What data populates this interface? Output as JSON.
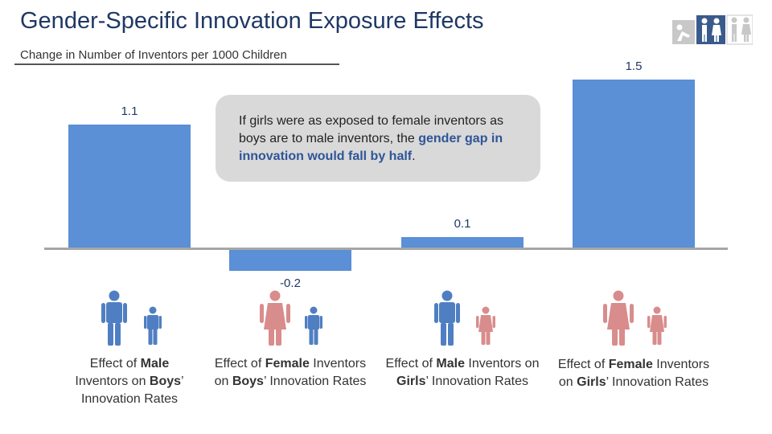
{
  "header": {
    "title": "Gender-Specific Innovation Exposure Effects",
    "subtitle": "Change in Number of Inventors per 1000 Children"
  },
  "callout": {
    "text_a": "If girls were as exposed to female inventors as boys are to male inventors, the ",
    "highlight": "gender gap in innovation would fall by half",
    "text_b": "."
  },
  "colors": {
    "bar": "#5b8fd6",
    "axis": "#a6a6a6",
    "male_icon": "#4f7fc2",
    "female_icon": "#d98c8c",
    "logo_gray": "#c8c8c8",
    "logo_blue": "#3a5a8c"
  },
  "chart_data": {
    "type": "bar",
    "categories": [
      "Effect of Male Inventors on Boys' Innovation Rates",
      "Effect of Female Inventors on Boys' Innovation Rates",
      "Effect of Male Inventors on Girls' Innovation Rates",
      "Effect of Female Inventors on Girls' Innovation Rates"
    ],
    "values": [
      1.1,
      -0.2,
      0.1,
      1.5
    ],
    "value_labels": [
      "1.1",
      "-0.2",
      "0.1",
      "1.5"
    ],
    "title": "Gender-Specific Innovation Exposure Effects",
    "ylabel": "Change in Number of Inventors per 1000 Children",
    "ylim": [
      -0.2,
      1.5
    ],
    "grid": false
  },
  "captions": [
    {
      "pre": "Effect of ",
      "bold1": "Male",
      "mid": " Inventors on ",
      "bold2": "Boys",
      "post": "’ Innovation Rates"
    },
    {
      "pre": "Effect of ",
      "bold1": "Female",
      "mid": " Inventors on ",
      "bold2": "Boys",
      "post": "’ Innovation Rates"
    },
    {
      "pre": "Effect of ",
      "bold1": "Male",
      "mid": " Inventors on ",
      "bold2": "Girls",
      "post": "’ Innovation Rates"
    },
    {
      "pre": "Effect of ",
      "bold1": "Female",
      "mid": " Inventors on ",
      "bold2": "Girls",
      "post": "’ Innovation Rates"
    }
  ],
  "icons": [
    {
      "adult": "man-icon",
      "child": "boy-icon"
    },
    {
      "adult": "woman-icon",
      "child": "boy-icon"
    },
    {
      "adult": "man-icon",
      "child": "girl-icon"
    },
    {
      "adult": "woman-icon",
      "child": "girl-icon"
    }
  ]
}
